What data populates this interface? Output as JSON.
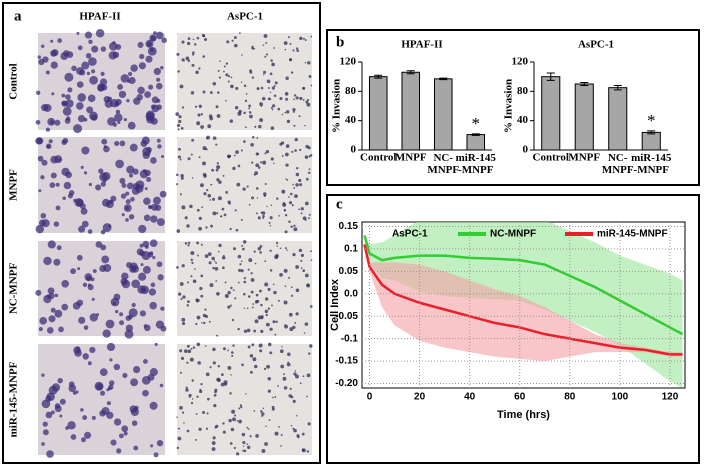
{
  "panels": {
    "a": {
      "label": "a",
      "columns": [
        "HPAF-II",
        "AsPC-1"
      ],
      "rows": [
        "Control",
        "MNPF",
        "NC-MNPF",
        "miR-145-MNPF"
      ]
    },
    "b": {
      "label": "b"
    },
    "c": {
      "label": "c"
    }
  },
  "chart_data": [
    {
      "type": "bar",
      "title": "HPAF-II",
      "y_label": "% Invasion",
      "categories": [
        "Control",
        "MNPF",
        "NC-\nMNPF",
        "miR-145\n-MNPF"
      ],
      "values": [
        100,
        106,
        97,
        21
      ],
      "errors": [
        2,
        2,
        1,
        1
      ],
      "color": "#a6a6a6",
      "ylim": [
        0,
        120
      ],
      "yticks": [
        0,
        40,
        80,
        120
      ],
      "annotations": [
        {
          "category": 3,
          "text": "*"
        }
      ]
    },
    {
      "type": "bar",
      "title": "AsPC-1",
      "y_label": "% Invasion",
      "categories": [
        "Control",
        "MNPF",
        "NC-\nMNPF",
        "miR-145\n-MNPF"
      ],
      "values": [
        100,
        90,
        85,
        24
      ],
      "errors": [
        5,
        2,
        3,
        2
      ],
      "color": "#a6a6a6",
      "ylim": [
        0,
        120
      ],
      "yticks": [
        0,
        40,
        80,
        120
      ],
      "annotations": [
        {
          "category": 3,
          "text": "*"
        }
      ]
    },
    {
      "type": "line",
      "annotation": "AsPC-1",
      "x_label": "Time (hrs)",
      "y_label": "Cell Index",
      "grid": true,
      "x": [
        -2,
        0,
        5,
        10,
        20,
        30,
        40,
        50,
        60,
        70,
        80,
        90,
        100,
        110,
        120,
        125
      ],
      "xlim": [
        -3,
        126
      ],
      "xticks": [
        0,
        20,
        40,
        60,
        80,
        100,
        120
      ],
      "ylim": [
        -0.21,
        0.16
      ],
      "yticks": [
        {
          "value": -0.2,
          "label": "-0.20"
        },
        -0.15,
        -0.1,
        -0.05,
        {
          "value": 0,
          "label": "0.0"
        },
        0.05,
        0.1,
        0.15
      ],
      "series": [
        {
          "name": "NC-MNPF",
          "color": "#33cc33",
          "band_color": "#99e699",
          "values": [
            0.13,
            0.09,
            0.075,
            0.08,
            0.085,
            0.085,
            0.08,
            0.078,
            0.075,
            0.065,
            0.04,
            0.015,
            -0.015,
            -0.045,
            -0.075,
            -0.09
          ],
          "errors": [
            0.0,
            0.02,
            0.04,
            0.05,
            0.08,
            0.09,
            0.09,
            0.09,
            0.09,
            0.1,
            0.1,
            0.1,
            0.1,
            0.11,
            0.12,
            0.12
          ]
        },
        {
          "name": "miR-145-MNPF",
          "color": "#e8202a",
          "band_color": "#f4a0a4",
          "values": [
            0.11,
            0.06,
            0.02,
            0.0,
            -0.02,
            -0.035,
            -0.05,
            -0.065,
            -0.075,
            -0.09,
            -0.1,
            -0.11,
            -0.12,
            -0.125,
            -0.135,
            -0.135
          ],
          "errors": [
            0.0,
            0.01,
            0.05,
            0.07,
            0.085,
            0.085,
            0.08,
            0.075,
            0.07,
            0.06,
            0.04,
            0.02,
            0.01,
            0.005,
            0.005,
            0.005
          ]
        }
      ]
    }
  ]
}
